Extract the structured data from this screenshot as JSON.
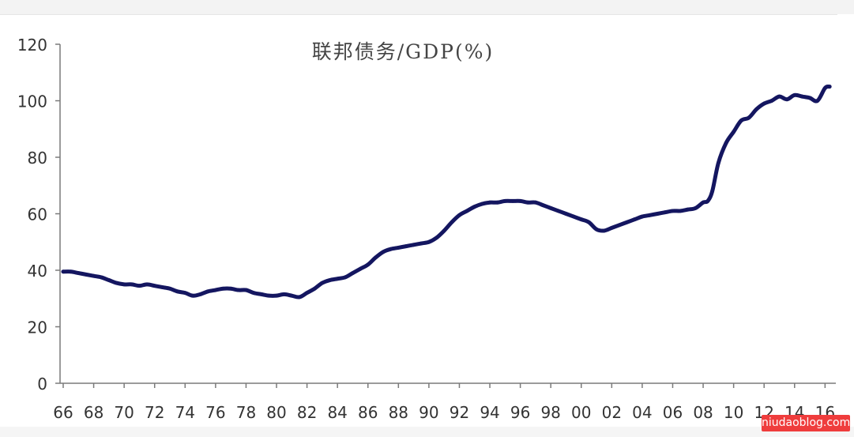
{
  "watermark": "niudaoblog.com",
  "colors": {
    "line": "#141660",
    "axis": "#7a7a7a",
    "tick_label": "#333333"
  },
  "chart_data": {
    "type": "line",
    "title": "联邦债务/GDP(%)",
    "xlabel": "",
    "ylabel": "",
    "xlim": [
      1966,
      2016.5
    ],
    "ylim": [
      0,
      120
    ],
    "grid": false,
    "legend": "none",
    "x_ticks": [
      1966,
      1968,
      1970,
      1972,
      1974,
      1976,
      1978,
      1980,
      1982,
      1984,
      1986,
      1988,
      1990,
      1992,
      1994,
      1996,
      1998,
      2000,
      2002,
      2004,
      2006,
      2008,
      2010,
      2012,
      2014,
      2016
    ],
    "x_tick_labels": [
      "66",
      "68",
      "70",
      "72",
      "74",
      "76",
      "78",
      "80",
      "82",
      "84",
      "86",
      "88",
      "90",
      "92",
      "94",
      "96",
      "98",
      "00",
      "02",
      "04",
      "06",
      "08",
      "10",
      "12",
      "14",
      "16"
    ],
    "y_ticks": [
      0,
      20,
      40,
      60,
      80,
      100,
      120
    ],
    "y_tick_labels": [
      "0",
      "20",
      "40",
      "60",
      "80",
      "100",
      "120"
    ],
    "series": [
      {
        "x": [
          1966,
          1966.5,
          1967,
          1967.5,
          1968,
          1968.5,
          1969,
          1969.5,
          1970,
          1970.5,
          1971,
          1971.5,
          1972,
          1972.5,
          1973,
          1973.5,
          1974,
          1974.5,
          1975,
          1975.5,
          1976,
          1976.5,
          1977,
          1977.5,
          1978,
          1978.5,
          1979,
          1979.5,
          1980,
          1980.5,
          1981,
          1981.5,
          1982,
          1982.5,
          1983,
          1983.5,
          1984,
          1984.5,
          1985,
          1985.5,
          1986,
          1986.5,
          1987,
          1987.5,
          1988,
          1988.5,
          1989,
          1989.5,
          1990,
          1990.5,
          1991,
          1991.5,
          1992,
          1992.5,
          1993,
          1993.5,
          1994,
          1994.5,
          1995,
          1995.5,
          1996,
          1996.5,
          1997,
          1997.5,
          1998,
          1998.5,
          1999,
          1999.5,
          2000,
          2000.5,
          2001,
          2001.5,
          2002,
          2002.5,
          2003,
          2003.5,
          2004,
          2004.5,
          2005,
          2005.5,
          2006,
          2006.5,
          2007,
          2007.5,
          2008,
          2008.3,
          2008.6,
          2009,
          2009.5,
          2010,
          2010.5,
          2011,
          2011.5,
          2012,
          2012.5,
          2013,
          2013.5,
          2014,
          2014.5,
          2015,
          2015.5,
          2016,
          2016.3
        ],
        "values": [
          39.5,
          39.5,
          39,
          38.5,
          38,
          37.5,
          36.5,
          35.5,
          35,
          35,
          34.5,
          35,
          34.5,
          34,
          33.5,
          32.5,
          32,
          31,
          31.5,
          32.5,
          33,
          33.5,
          33.5,
          33,
          33,
          32,
          31.5,
          31,
          31,
          31.5,
          31,
          30.5,
          32,
          33.5,
          35.5,
          36.5,
          37,
          37.5,
          39,
          40.5,
          42,
          44.5,
          46.5,
          47.5,
          48,
          48.5,
          49,
          49.5,
          50,
          51.5,
          54,
          57,
          59.5,
          61,
          62.5,
          63.5,
          64,
          64,
          64.5,
          64.5,
          64.5,
          64,
          64,
          63,
          62,
          61,
          60,
          59,
          58,
          57,
          54.5,
          54,
          55,
          56,
          57,
          58,
          59,
          59.5,
          60,
          60.5,
          61,
          61,
          61.5,
          62,
          64,
          64.5,
          68,
          78,
          85,
          89,
          93,
          94,
          97,
          99,
          100,
          101.5,
          100.5,
          102,
          101.5,
          101,
          100,
          104.5,
          105
        ]
      }
    ]
  }
}
